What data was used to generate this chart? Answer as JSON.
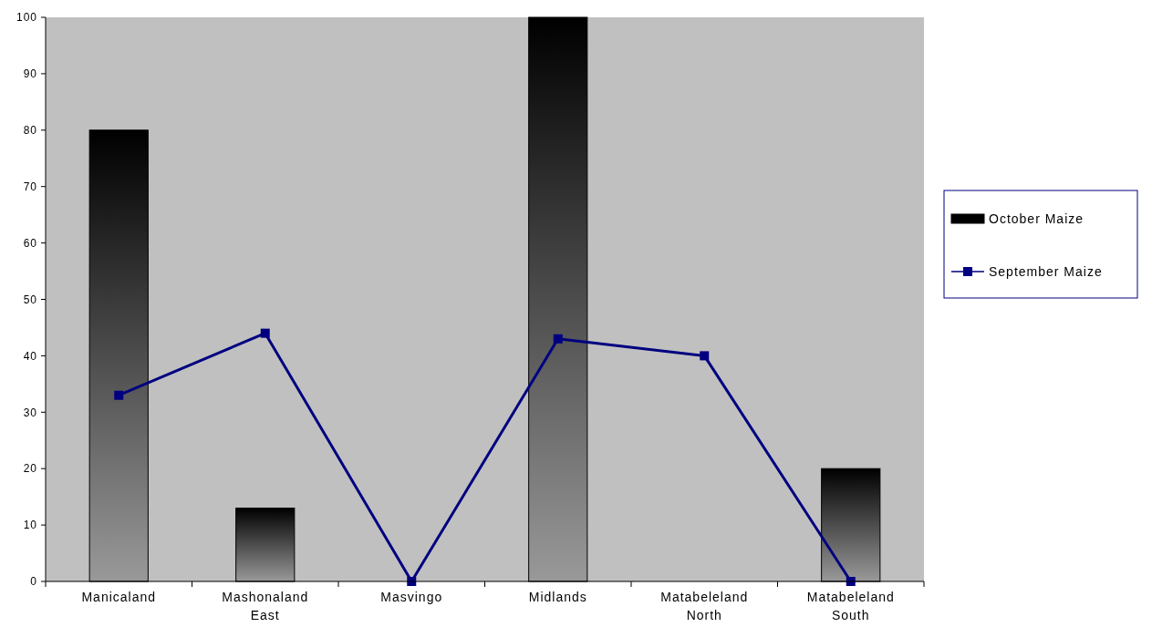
{
  "chart_data": {
    "type": "bar",
    "categories": [
      "Manicaland",
      "Mashonaland East",
      "Masvingo",
      "Midlands",
      "Matabeleland North",
      "Matabeleland South"
    ],
    "series": [
      {
        "name": "October Maize",
        "color": "#000000",
        "values": [
          80,
          13,
          null,
          100,
          null,
          20
        ]
      },
      {
        "name": "September Maize",
        "type": "line",
        "color": "#000080",
        "values": [
          33,
          44,
          0,
          43,
          40,
          0
        ]
      }
    ],
    "ylim": [
      0,
      100
    ],
    "yticks": [
      0,
      10,
      20,
      30,
      40,
      50,
      60,
      70,
      80,
      90,
      100
    ],
    "grid": false,
    "legend": "right",
    "marker": "square",
    "line_style": "solid"
  }
}
